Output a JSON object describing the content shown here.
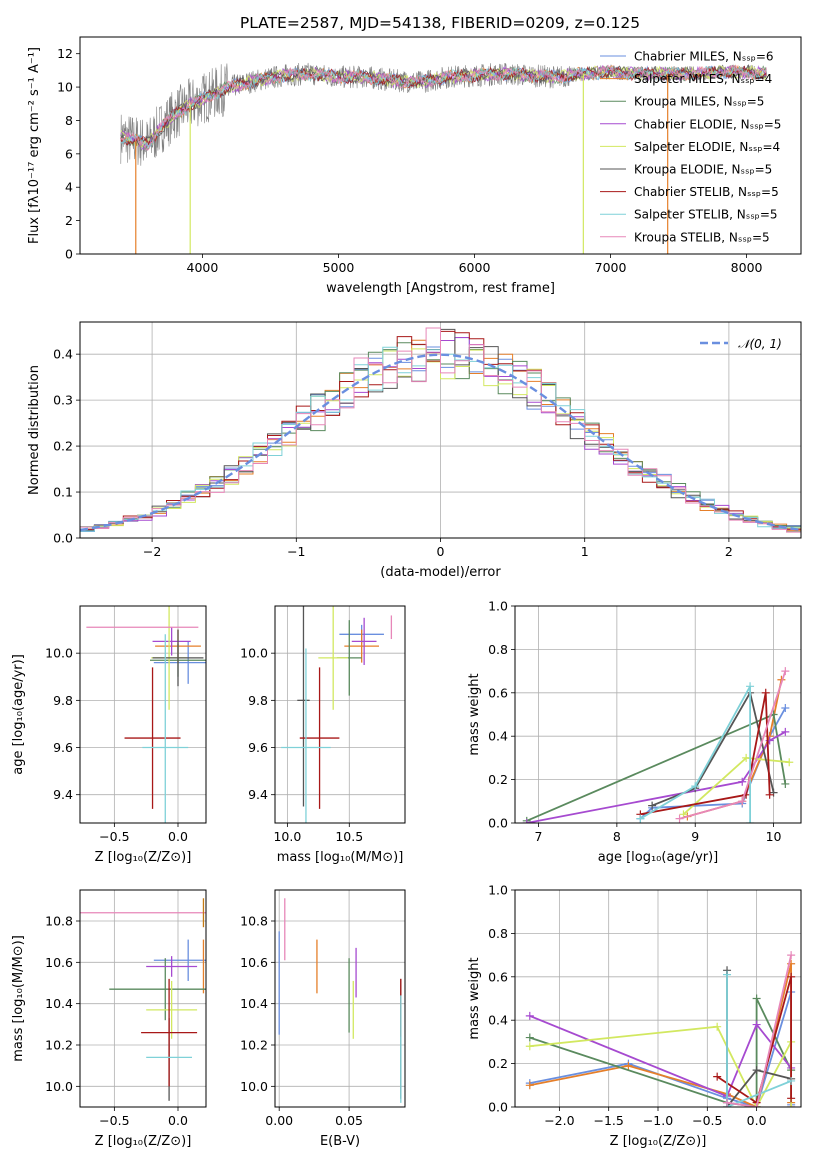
{
  "colors": {
    "palette": [
      "#6a8fdf",
      "#e57f2a",
      "#5a8a5e",
      "#a64ad0",
      "#d2e860",
      "#555555",
      "#a81818",
      "#7fd1d8",
      "#e787b9",
      "#c47a12",
      "#7a7a7a",
      "#cccccc"
    ],
    "grid": "#b0b0b0",
    "spectrum_data": "#808080"
  },
  "chart_data": [
    {
      "id": "spectrum",
      "type": "line",
      "title": "PLATE=2587, MJD=54138, FIBERID=0209, z=0.125",
      "xlabel": "wavelength [Angstrom, rest frame]",
      "ylabel": "Flux [fλ10⁻¹⁷ erg cm⁻² s⁻¹ A⁻¹]",
      "xlim": [
        3100,
        8400
      ],
      "ylim": [
        0,
        13
      ],
      "xticks": [
        "4000",
        "5000",
        "6000",
        "7000",
        "8000"
      ],
      "yticks": [
        "0",
        "2",
        "4",
        "6",
        "8",
        "10",
        "12"
      ],
      "grid": false,
      "legend_position": "upper right",
      "continuum": {
        "x": [
          3400,
          3500,
          3600,
          3700,
          3800,
          3900,
          4000,
          4200,
          4400,
          4600,
          4800,
          5000,
          5200,
          5400,
          5600,
          5800,
          6000,
          6200,
          6400,
          6600,
          6800,
          7000,
          7200,
          7400,
          7600,
          7800,
          8000,
          8150
        ],
        "y": [
          7.0,
          6.8,
          6.6,
          7.6,
          8.4,
          8.9,
          9.3,
          10.0,
          10.4,
          10.7,
          10.8,
          10.6,
          10.6,
          10.4,
          10.3,
          10.6,
          10.7,
          10.8,
          10.7,
          10.6,
          10.8,
          10.9,
          10.8,
          10.8,
          10.8,
          10.9,
          10.9,
          10.8
        ]
      },
      "series": [
        {
          "name": "Chabrier MILES, Nₛₛₚ=6"
        },
        {
          "name": "Salpeter MILES, Nₛₛₚ=4"
        },
        {
          "name": "Kroupa MILES, Nₛₛₚ=5"
        },
        {
          "name": "Chabrier ELODIE, Nₛₛₚ=5"
        },
        {
          "name": "Salpeter ELODIE, Nₛₛₚ=4"
        },
        {
          "name": "Kroupa ELODIE, Nₛₛₚ=5"
        },
        {
          "name": "Chabrier STELIB, Nₛₛₚ=5"
        },
        {
          "name": "Salpeter STELIB, Nₛₛₚ=5"
        },
        {
          "name": "Kroupa STELIB, Nₛₛₚ=5"
        }
      ],
      "cutoffs": {
        "kroupa_elodie": [
          3910,
          6800
        ],
        "salpeter_stelib": [
          3510,
          7420
        ],
        "salpeter_miles": [
          7420
        ]
      }
    },
    {
      "id": "residuals",
      "type": "histogram",
      "xlabel": "(data-model)/error",
      "ylabel": "Normed distribution",
      "xlim": [
        -2.5,
        2.5
      ],
      "ylim": [
        0,
        0.47
      ],
      "xticks": [
        "−2",
        "−1",
        "0",
        "1",
        "2"
      ],
      "yticks": [
        "0.0",
        "0.1",
        "0.2",
        "0.3",
        "0.4"
      ],
      "grid": true,
      "legend_position": "upper right",
      "legend": [
        {
          "label": "𝒩(0, 1)",
          "style": "dashed"
        }
      ],
      "bin_width": 0.1
    },
    {
      "id": "age_vs_Z",
      "type": "errorbar",
      "xlabel": "Z [log₁₀(Z/Z⊙)]",
      "ylabel": "age  [log₁₀(age/yr)]",
      "xlim": [
        -0.77,
        0.22
      ],
      "ylim": [
        9.28,
        10.2
      ],
      "xticks": [
        "−0.5",
        "0.0"
      ],
      "yticks": [
        "9.4",
        "9.6",
        "9.8",
        "10.0"
      ],
      "grid": true,
      "points": [
        {
          "x": 0.08,
          "xerr": 0.27,
          "y": 9.96,
          "yerr": 0.09
        },
        {
          "x": 0.0,
          "xerr": 0.18,
          "y": 10.03,
          "yerr": 0.07
        },
        {
          "x": 0.0,
          "xerr": 0.22,
          "y": 9.97,
          "yerr": 0.07
        },
        {
          "x": -0.05,
          "xerr": 0.15,
          "y": 10.05,
          "yerr": 0.06
        },
        {
          "x": -0.07,
          "xerr": 0.14,
          "y": 9.98,
          "yerr": 0.22
        },
        {
          "x": 0.0,
          "xerr": 0.2,
          "y": 9.98,
          "yerr": 0.12
        },
        {
          "x": -0.2,
          "xerr": 0.22,
          "y": 9.64,
          "yerr": 0.3
        },
        {
          "x": -0.1,
          "xerr": 0.18,
          "y": 9.6,
          "yerr": 0.48
        },
        {
          "x": -0.28,
          "xerr": 0.44,
          "y": 10.11,
          "yerr": 0.0
        }
      ]
    },
    {
      "id": "age_vs_mass",
      "type": "errorbar",
      "xlabel": "mass [log₁₀(M/M⊙)]",
      "ylabel": "",
      "xlim": [
        9.9,
        10.95
      ],
      "ylim": [
        9.28,
        10.2
      ],
      "xticks": [
        "10.0",
        "10.5"
      ],
      "yticks": [
        "9.4",
        "9.6",
        "9.8",
        "10.0"
      ],
      "grid": true,
      "points": [
        {
          "x": 10.6,
          "xerr": 0.18,
          "y": 10.08,
          "yerr": 0.04
        },
        {
          "x": 10.6,
          "xerr": 0.14,
          "y": 10.03,
          "yerr": 0.07
        },
        {
          "x": 10.5,
          "xerr": 0.1,
          "y": 9.98,
          "yerr": 0.16
        },
        {
          "x": 10.62,
          "xerr": 0.1,
          "y": 10.05,
          "yerr": 0.1
        },
        {
          "x": 10.37,
          "xerr": 0.12,
          "y": 9.98,
          "yerr": 0.22
        },
        {
          "x": 10.13,
          "xerr": 0.05,
          "y": 9.8,
          "yerr": 0.45
        },
        {
          "x": 10.26,
          "xerr": 0.16,
          "y": 9.64,
          "yerr": 0.3
        },
        {
          "x": 10.15,
          "xerr": 0.2,
          "y": 9.6,
          "yerr": 0.42
        },
        {
          "x": 10.84,
          "xerr": 0.0,
          "y": 10.11,
          "yerr": 0.05
        }
      ]
    },
    {
      "id": "weight_vs_age",
      "type": "line",
      "xlabel": "age  [log₁₀(age/yr)]",
      "ylabel": "mass weight",
      "xlim": [
        6.7,
        10.35
      ],
      "ylim": [
        0,
        1
      ],
      "xticks": [
        "7",
        "8",
        "9",
        "10"
      ],
      "yticks": [
        "0.0",
        "0.2",
        "0.4",
        "0.6",
        "0.8",
        "1.0"
      ],
      "grid": true,
      "series": [
        {
          "x": [
            8.3,
            8.45,
            9.6,
            9.95,
            10.15
          ],
          "y": [
            0.02,
            0.07,
            0.09,
            0.4,
            0.53
          ]
        },
        {
          "x": [
            8.9,
            9.6,
            9.95,
            10.1
          ],
          "y": [
            0.03,
            0.1,
            0.4,
            0.66
          ]
        },
        {
          "x": [
            6.85,
            10.0,
            10.15
          ],
          "y": [
            0.01,
            0.5,
            0.18
          ]
        },
        {
          "x": [
            6.85,
            9.6,
            9.95,
            10.15
          ],
          "y": [
            0.0,
            0.19,
            0.38,
            0.42
          ]
        },
        {
          "x": [
            8.85,
            9.65,
            10.2
          ],
          "y": [
            0.04,
            0.3,
            0.28
          ]
        },
        {
          "x": [
            8.45,
            9.0,
            9.7,
            10.0
          ],
          "y": [
            0.08,
            0.16,
            0.6,
            0.14
          ]
        },
        {
          "x": [
            8.3,
            9.65,
            9.9,
            9.95
          ],
          "y": [
            0.04,
            0.13,
            0.6,
            0.13
          ]
        },
        {
          "x": [
            8.3,
            9.0,
            9.7,
            9.7
          ],
          "y": [
            0.02,
            0.17,
            0.63,
            0.0
          ]
        },
        {
          "x": [
            8.8,
            9.6,
            10.15
          ],
          "y": [
            0.02,
            0.1,
            0.7
          ]
        }
      ]
    },
    {
      "id": "mass_vs_Z",
      "type": "errorbar",
      "xlabel": "Z [log₁₀(Z/Z⊙)]",
      "ylabel": "mass [log₁₀(M/M⊙)]",
      "xlim": [
        -0.77,
        0.22
      ],
      "ylim": [
        9.9,
        10.95
      ],
      "xticks": [
        "−0.5",
        "0.0"
      ],
      "yticks": [
        "10.0",
        "10.2",
        "10.4",
        "10.6",
        "10.8"
      ],
      "grid": true,
      "points": [
        {
          "x": 0.08,
          "xerr": 0.27,
          "y": 10.61,
          "yerr": 0.1
        },
        {
          "x": 0.2,
          "xerr": 0.0,
          "y": 10.58,
          "yerr": 0.13
        },
        {
          "x": -0.1,
          "xerr": 0.44,
          "y": 10.47,
          "yerr": 0.15
        },
        {
          "x": -0.05,
          "xerr": 0.2,
          "y": 10.58,
          "yerr": 0.05
        },
        {
          "x": -0.05,
          "xerr": 0.2,
          "y": 10.37,
          "yerr": 0.14
        },
        {
          "x": -0.07,
          "xerr": 0.0,
          "y": 10.13,
          "yerr": 0.2
        },
        {
          "x": -0.07,
          "xerr": 0.22,
          "y": 10.26,
          "yerr": 0.26
        },
        {
          "x": -0.07,
          "xerr": 0.18,
          "y": 10.14,
          "yerr": 0.0
        },
        {
          "x": -0.28,
          "xerr": 0.5,
          "y": 10.84,
          "yerr": 0.0
        },
        {
          "x": 0.2,
          "xerr": 0.0,
          "y": 10.84,
          "yerr": 0.07
        }
      ]
    },
    {
      "id": "mass_vs_ebv",
      "type": "errorbar",
      "xlabel": "E(B-V)",
      "ylabel": "",
      "xlim": [
        -0.003,
        0.09
      ],
      "ylim": [
        9.9,
        10.95
      ],
      "xticks": [
        "0.00",
        "0.05"
      ],
      "yticks": [
        "10.0",
        "10.2",
        "10.4",
        "10.6",
        "10.8"
      ],
      "grid": true,
      "points": [
        {
          "x": 0.0,
          "y": 10.5,
          "yerr": 0.25
        },
        {
          "x": 0.027,
          "y": 10.58,
          "yerr": 0.13
        },
        {
          "x": 0.05,
          "y": 10.44,
          "yerr": 0.18
        },
        {
          "x": 0.055,
          "y": 10.55,
          "yerr": 0.12
        },
        {
          "x": 0.053,
          "y": 10.37,
          "yerr": 0.14
        },
        {
          "x": 0.087,
          "y": 10.23,
          "yerr": 0.29
        },
        {
          "x": 0.087,
          "y": 10.38,
          "yerr": 0.14
        },
        {
          "x": 0.087,
          "y": 10.18,
          "yerr": 0.26
        },
        {
          "x": 0.004,
          "y": 10.76,
          "yerr": 0.15
        }
      ]
    },
    {
      "id": "weight_vs_Z",
      "type": "line",
      "xlabel": "Z [log₁₀(Z/Z⊙)]",
      "ylabel": "mass weight",
      "xlim": [
        -2.45,
        0.45
      ],
      "ylim": [
        0,
        1
      ],
      "xticks": [
        "−2.0",
        "−1.5",
        "−1.0",
        "−0.5",
        "0.0"
      ],
      "yticks": [
        "0.0",
        "0.2",
        "0.4",
        "0.6",
        "0.8",
        "1.0"
      ],
      "grid": true,
      "series": [
        {
          "x": [
            -2.3,
            -1.3,
            -0.3,
            0.0,
            0.35,
            0.35
          ],
          "y": [
            0.11,
            0.2,
            0.04,
            0.0,
            0.53,
            0.01
          ]
        },
        {
          "x": [
            -2.3,
            -1.3,
            -0.3,
            0.0,
            0.35,
            0.35
          ],
          "y": [
            0.1,
            0.19,
            0.06,
            0.0,
            0.66,
            0.02
          ]
        },
        {
          "x": [
            -2.3,
            -0.3,
            0.0,
            0.0,
            0.35
          ],
          "y": [
            0.32,
            0.02,
            0.0,
            0.5,
            0.17
          ]
        },
        {
          "x": [
            -2.3,
            -0.3,
            0.0,
            0.35,
            0.35
          ],
          "y": [
            0.42,
            0.05,
            0.38,
            0.18,
            0.0
          ]
        },
        {
          "x": [
            -2.3,
            -0.4,
            0.0,
            0.35,
            0.35
          ],
          "y": [
            0.28,
            0.37,
            0.0,
            0.3,
            0.0
          ]
        },
        {
          "x": [
            -0.3,
            -0.3,
            0.0,
            0.35
          ],
          "y": [
            0.63,
            0.0,
            0.17,
            0.13
          ]
        },
        {
          "x": [
            -0.4,
            0.0,
            0.35,
            0.35
          ],
          "y": [
            0.14,
            0.02,
            0.6,
            0.04
          ]
        },
        {
          "x": [
            -0.3,
            -0.3,
            0.35
          ],
          "y": [
            0.61,
            0.0,
            0.12
          ]
        },
        {
          "x": [
            -0.3,
            0.0,
            0.35
          ],
          "y": [
            0.02,
            0.0,
            0.7
          ]
        }
      ]
    }
  ]
}
